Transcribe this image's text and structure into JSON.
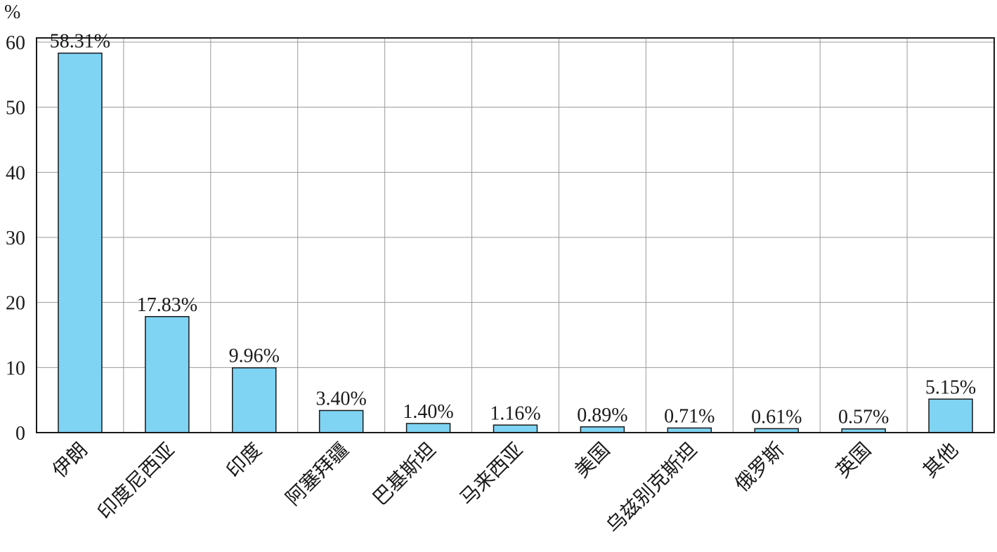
{
  "chart_data": {
    "type": "bar",
    "title": "",
    "xlabel": "",
    "ylabel": "%",
    "ylim": [
      0,
      60
    ],
    "yticks": [
      "0",
      "10",
      "20",
      "30",
      "40",
      "50",
      "60"
    ],
    "grid": true,
    "bar_color": "#7fd3f3",
    "categories": [
      "伊朗",
      "印度尼西亚",
      "印度",
      "阿塞拜疆",
      "巴基斯坦",
      "马来西亚",
      "美国",
      "乌兹别克斯坦",
      "俄罗斯",
      "英国",
      "其他"
    ],
    "values": [
      58.31,
      17.83,
      9.96,
      3.4,
      1.4,
      1.16,
      0.89,
      0.71,
      0.61,
      0.57,
      5.15
    ],
    "data_labels": [
      "58.31%",
      "17.83%",
      "9.96%",
      "3.40%",
      "1.40%",
      "1.16%",
      "0.89%",
      "0.71%",
      "0.61%",
      "0.57%",
      "5.15%"
    ]
  }
}
